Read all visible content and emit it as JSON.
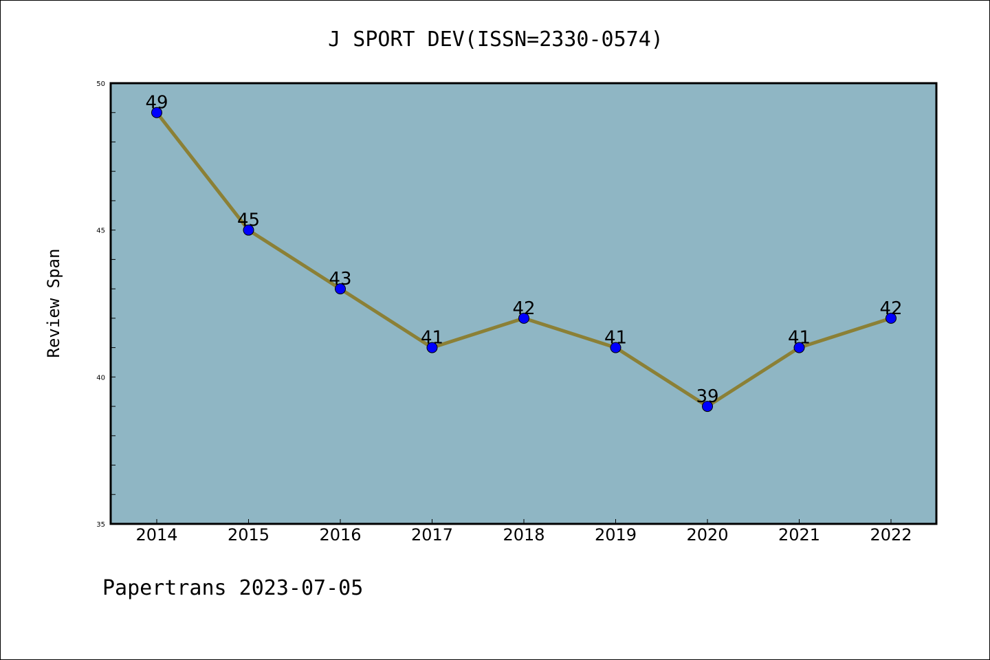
{
  "chart_data": {
    "type": "line",
    "title": "J SPORT DEV(ISSN=2330-0574)",
    "ylabel": "Review Span",
    "xlabel": "",
    "x": [
      "2014",
      "2015",
      "2016",
      "2017",
      "2018",
      "2019",
      "2020",
      "2021",
      "2022"
    ],
    "series": [
      {
        "values": [
          49,
          45,
          43,
          41,
          42,
          41,
          39,
          41,
          42
        ],
        "line_color": "#8b8036",
        "marker_color": "#0000ff"
      }
    ],
    "ylim": [
      35,
      50
    ],
    "yticks": [
      35,
      40,
      45,
      50
    ],
    "grid": false,
    "plot_background": "#8fb6c4",
    "footer": "Papertrans 2023-07-05"
  }
}
